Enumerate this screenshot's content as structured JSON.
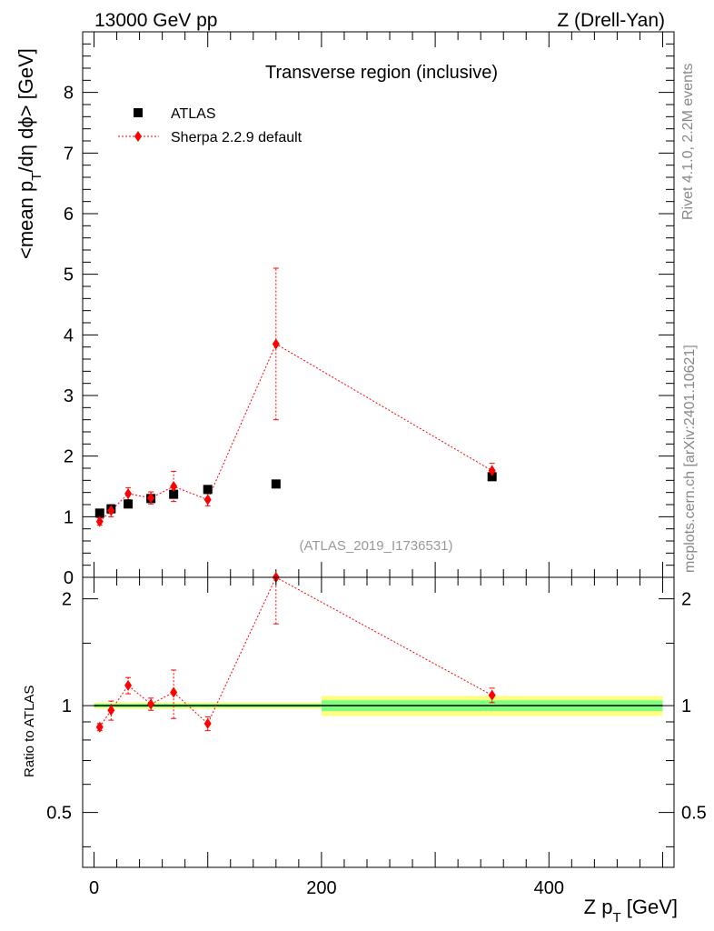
{
  "header": {
    "left": "13000 GeV pp",
    "right": "Z (Drell-Yan)"
  },
  "side_labels": {
    "rivet": "Rivet 4.1.0,  2.2M events",
    "mcplots": "mcplots.cern.ch [arXiv:2401.10621]"
  },
  "chart_data": [
    {
      "type": "scatter",
      "panel": "main",
      "title": "Transverse region (inclusive)",
      "xlabel": "Z p_T [GeV]",
      "ylabel": "<mean p_T/dη dφ> [GeV]",
      "watermark": "(ATLAS_2019_I1736531)",
      "xlim": [
        -10,
        510
      ],
      "ylim": [
        0,
        9
      ],
      "yticks": [
        0,
        1,
        2,
        3,
        4,
        5,
        6,
        7,
        8
      ],
      "xticks": [
        0,
        200,
        400
      ],
      "legend_position": "top-left",
      "series": [
        {
          "name": "ATLAS",
          "color": "#000000",
          "marker": "square",
          "x": [
            5,
            15,
            30,
            50,
            70,
            100,
            160,
            350
          ],
          "y": [
            1.06,
            1.13,
            1.21,
            1.3,
            1.37,
            1.45,
            1.54,
            1.66
          ]
        },
        {
          "name": "Sherpa 2.2.9 default",
          "color": "#ff0000",
          "marker": "diamond",
          "line": "dotted",
          "x": [
            5,
            15,
            30,
            50,
            70,
            100,
            160,
            350
          ],
          "y": [
            0.92,
            1.1,
            1.38,
            1.31,
            1.5,
            1.28,
            3.85,
            1.76
          ],
          "yerr": [
            0.06,
            0.1,
            0.1,
            0.1,
            0.25,
            0.1,
            1.25,
            0.12
          ]
        }
      ]
    },
    {
      "type": "scatter",
      "panel": "ratio",
      "ylabel": "Ratio to ATLAS",
      "xlabel": "Z p_T [GeV]",
      "xlim": [
        -10,
        510
      ],
      "ylim": [
        0.35,
        2.3
      ],
      "yscale": "log",
      "yticks": [
        0.5,
        1,
        2
      ],
      "ytick_labels": [
        "0.5",
        "1",
        "2"
      ],
      "xticks": [
        0,
        200,
        400
      ],
      "xtick_labels": [
        "0",
        "200",
        "400"
      ],
      "reference_line": 1,
      "band": {
        "x_edges": [
          0,
          200,
          500
        ],
        "stat_halfwidth": [
          0.012,
          0.035
        ],
        "total_halfwidth": [
          0.02,
          0.065
        ],
        "stat_color": "#7fff7f",
        "total_color": "#ffff7f"
      },
      "series": [
        {
          "name": "Sherpa 2.2.9 default",
          "color": "#ff0000",
          "x": [
            5,
            15,
            30,
            50,
            70,
            100,
            160,
            350
          ],
          "y": [
            0.87,
            0.97,
            1.14,
            1.01,
            1.09,
            0.89,
            2.3,
            1.07
          ],
          "yerr": [
            0.02,
            0.06,
            0.06,
            0.04,
            0.17,
            0.04,
            0.6,
            0.05
          ]
        }
      ]
    }
  ]
}
